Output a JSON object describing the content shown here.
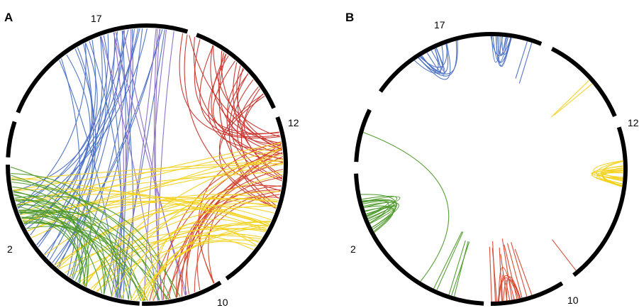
{
  "panels": [
    {
      "id": "A",
      "letter": "A",
      "labels": {
        "top": "17",
        "right": "12",
        "left": "2",
        "bottom": "10"
      }
    },
    {
      "id": "B",
      "letter": "B",
      "labels": {
        "top": "17",
        "right": "12",
        "left": "2",
        "bottom": "10"
      }
    }
  ],
  "colors": {
    "chr17": "#4a6fc4",
    "chr12": "#f3d21c",
    "chr2": "#4e9a2b",
    "chr10": "#d4442c",
    "purple": "#8a6cc9",
    "red": "#c8322b",
    "ring": "#000000"
  }
}
